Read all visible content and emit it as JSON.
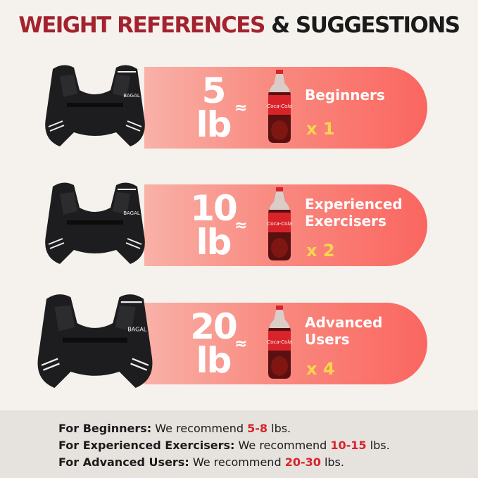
{
  "title": {
    "part1": "WEIGHT REFERENCES",
    "part2": "& SUGGESTIONS"
  },
  "colors": {
    "title_red": "#a3222e",
    "pill_start": "#f9b1a8",
    "pill_end": "#fa6660",
    "multiplier": "#f8d64e",
    "highlight": "#d8232a"
  },
  "vest_brand": "BAGAL",
  "bottle_brand": "Coca-Cola",
  "approx_symbol": "≈",
  "rows": [
    {
      "weight": "5",
      "unit": "lb",
      "label_lines": [
        "Beginners"
      ],
      "multiplier": "x 1"
    },
    {
      "weight": "10",
      "unit": "lb",
      "label_lines": [
        "Experienced",
        "Exercisers"
      ],
      "multiplier": "x 2"
    },
    {
      "weight": "20",
      "unit": "lb",
      "label_lines": [
        "Advanced",
        "Users"
      ],
      "multiplier": "x 4"
    }
  ],
  "recommendations": [
    {
      "lead": "For Beginners:",
      "text": " We recommend ",
      "range": "5-8",
      "unit": " lbs."
    },
    {
      "lead": "For Experienced Exercisers:",
      "text": " We recommend ",
      "range": "10-15",
      "unit": " lbs."
    },
    {
      "lead": "For Advanced Users:",
      "text": " We recommend ",
      "range": "20-30",
      "unit": " lbs."
    }
  ]
}
